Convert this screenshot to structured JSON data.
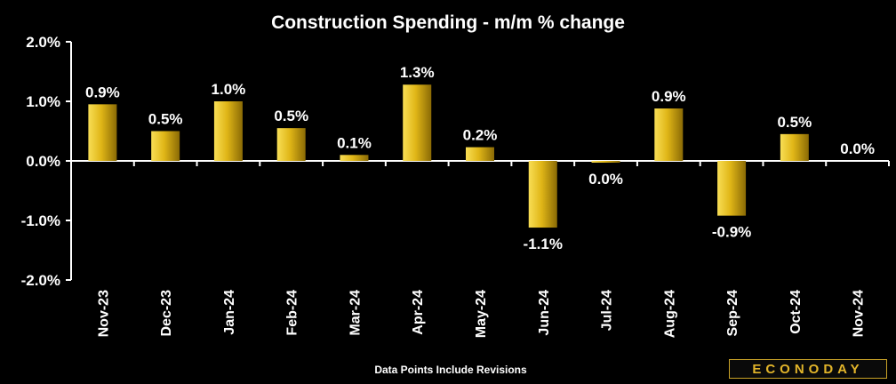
{
  "chart_data": {
    "type": "bar",
    "title": "Construction Spending - m/m % change",
    "categories": [
      "Nov-23",
      "Dec-23",
      "Jan-24",
      "Feb-24",
      "Mar-24",
      "Apr-24",
      "May-24",
      "Jun-24",
      "Jul-24",
      "Aug-24",
      "Sep-24",
      "Oct-24",
      "Nov-24"
    ],
    "values": [
      0.95,
      0.5,
      1.0,
      0.55,
      0.1,
      1.28,
      0.23,
      -1.12,
      -0.03,
      0.88,
      -0.92,
      0.45,
      0.0
    ],
    "data_labels": [
      "0.9%",
      "0.5%",
      "1.0%",
      "0.5%",
      "0.1%",
      "1.3%",
      "0.2%",
      "-1.1%",
      "0.0%",
      "0.9%",
      "-0.9%",
      "0.5%",
      "0.0%"
    ],
    "y_tick_labels": [
      "2.0%",
      "1.0%",
      "0.0%",
      "-1.0%",
      "-2.0%"
    ],
    "y_ticks": [
      2,
      1,
      0,
      -1,
      -2
    ],
    "ylim": [
      -2,
      2
    ],
    "xlabel": "",
    "ylabel": "",
    "grid": false,
    "colors": {
      "bar_light": "#f5d33a",
      "bar_mid": "#d4a90f",
      "bar_dark": "#8a6a05",
      "background": "#000000",
      "axis": "#ffffff"
    }
  },
  "footer": {
    "note": "Data Points Include Revisions",
    "logo": "ECONODAY",
    "logo_color": "#e3b52a"
  }
}
